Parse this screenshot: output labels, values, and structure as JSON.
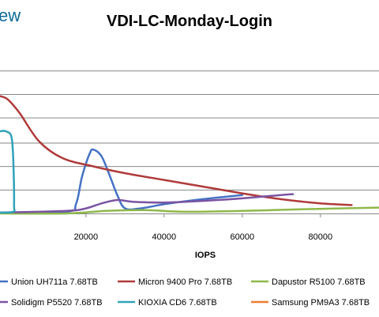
{
  "brand": {
    "text": "ew"
  },
  "chart_data": {
    "type": "line",
    "title": "VDI-LC-Monday-Login",
    "xlabel": "IOPS",
    "ylabel": "",
    "xlim": [
      -2000,
      95000
    ],
    "ylim": [
      0,
      100
    ],
    "x_ticks": [
      20000,
      40000,
      60000,
      80000
    ],
    "x_tick_labels": [
      "20000",
      "40000",
      "60000",
      "80000"
    ],
    "y_gridlines": [
      14,
      28,
      42,
      57,
      71,
      85
    ],
    "grid": true,
    "legend_position": "bottom",
    "series": [
      {
        "name": "Union UH711a 7.68TB",
        "color": "#4472c4",
        "points": [
          [
            -2000,
            0.5
          ],
          [
            15000,
            1
          ],
          [
            17500,
            6
          ],
          [
            19000,
            22
          ],
          [
            21000,
            36
          ],
          [
            22000,
            38
          ],
          [
            24000,
            34
          ],
          [
            26000,
            23
          ],
          [
            28000,
            11
          ],
          [
            30000,
            3
          ],
          [
            34000,
            3
          ],
          [
            40000,
            5.5
          ],
          [
            48000,
            8
          ],
          [
            60000,
            11
          ]
        ]
      },
      {
        "name": "Micron 9400 Pro 7.68TB",
        "color": "#b03a3a",
        "points": [
          [
            -2000,
            70
          ],
          [
            0,
            68
          ],
          [
            3000,
            60
          ],
          [
            8000,
            43
          ],
          [
            14000,
            33
          ],
          [
            22000,
            28
          ],
          [
            30000,
            24
          ],
          [
            40000,
            20
          ],
          [
            50000,
            16
          ],
          [
            60000,
            12
          ],
          [
            70000,
            8.5
          ],
          [
            80000,
            6
          ],
          [
            88000,
            5
          ]
        ]
      },
      {
        "name": "Dapustor R5100 7.68TB",
        "color": "#8eb84a",
        "points": [
          [
            -2000,
            0
          ],
          [
            15000,
            0
          ],
          [
            25000,
            1.5
          ],
          [
            35000,
            2
          ],
          [
            45000,
            1
          ],
          [
            60000,
            1.5
          ],
          [
            75000,
            2.5
          ],
          [
            85000,
            3
          ],
          [
            95000,
            3.5
          ]
        ]
      },
      {
        "name": "Solidigm P5520 7.68TB",
        "color": "#7a54a3",
        "points": [
          [
            -2000,
            0.5
          ],
          [
            15000,
            1.5
          ],
          [
            20000,
            3
          ],
          [
            24000,
            6
          ],
          [
            28000,
            8
          ],
          [
            32000,
            7
          ],
          [
            40000,
            6.5
          ],
          [
            50000,
            7.5
          ],
          [
            60000,
            9
          ],
          [
            70000,
            11
          ],
          [
            73000,
            11.5
          ]
        ]
      },
      {
        "name": "KIOXIA CD6 7.68TB",
        "color": "#31a2b8",
        "points": [
          [
            -2000,
            49
          ],
          [
            -500,
            49
          ],
          [
            1000,
            45
          ],
          [
            1500,
            25
          ],
          [
            1600,
            5
          ],
          [
            1400,
            1
          ],
          [
            -2000,
            0.5
          ]
        ]
      },
      {
        "name": "Samsung PM9A3 7.68TB",
        "color": "#ed7d31",
        "points": []
      }
    ]
  }
}
